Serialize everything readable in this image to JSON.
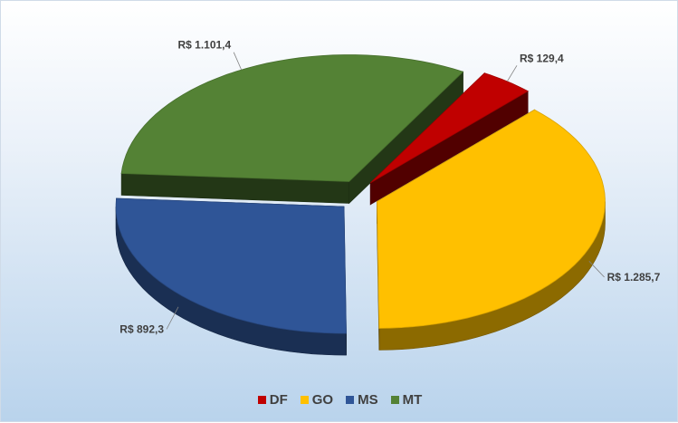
{
  "chart_data": {
    "type": "pie",
    "title": "",
    "categories": [
      "DF",
      "GO",
      "MS",
      "MT"
    ],
    "values": [
      129.4,
      1285.7,
      892.3,
      1101.4
    ],
    "labels": [
      "R$ 129,4",
      "R$ 1.285,7",
      "R$ 892,3",
      "R$ 1.101,4"
    ],
    "colors": [
      "#c00000",
      "#ffc000",
      "#2f5597",
      "#548235"
    ],
    "legend_position": "bottom",
    "style": "3d-exploded"
  }
}
